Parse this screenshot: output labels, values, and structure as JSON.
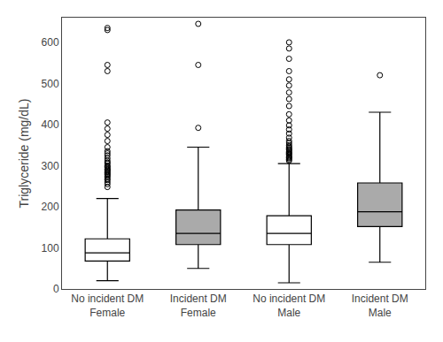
{
  "chart_data": {
    "type": "box",
    "categories": [
      "No incident DM\nFemale",
      "Incident DM\nFemale",
      "No incident DM\nMale",
      "Incident DM\nMale"
    ],
    "q1": [
      68,
      108,
      108,
      152
    ],
    "median": [
      88,
      135,
      135,
      188
    ],
    "q3": [
      122,
      192,
      178,
      258
    ],
    "whisker_low": [
      20,
      50,
      15,
      65
    ],
    "whisker_high": [
      220,
      345,
      305,
      430
    ],
    "outliers": [
      [
        248,
        255,
        260,
        265,
        268,
        272,
        275,
        278,
        280,
        283,
        285,
        288,
        290,
        292,
        295,
        298,
        300,
        305,
        308,
        312,
        318,
        325,
        330,
        335,
        345,
        360,
        375,
        390,
        405,
        530,
        545,
        630,
        635
      ],
      [
        392,
        545,
        645
      ],
      [
        312,
        315,
        318,
        320,
        322,
        325,
        328,
        330,
        332,
        335,
        338,
        340,
        343,
        346,
        350,
        355,
        360,
        368,
        378,
        388,
        398,
        410,
        425,
        445,
        462,
        478,
        495,
        510,
        530,
        560,
        585,
        600
      ],
      [
        520
      ]
    ],
    "colors": [
      "white",
      "#aaaaaa",
      "white",
      "#aaaaaa"
    ],
    "ylabel": "Triglyceride (mg/dL)",
    "ylim": [
      0,
      660
    ],
    "yticks": [
      0,
      100,
      200,
      300,
      400,
      500,
      600
    ],
    "grid": false
  }
}
